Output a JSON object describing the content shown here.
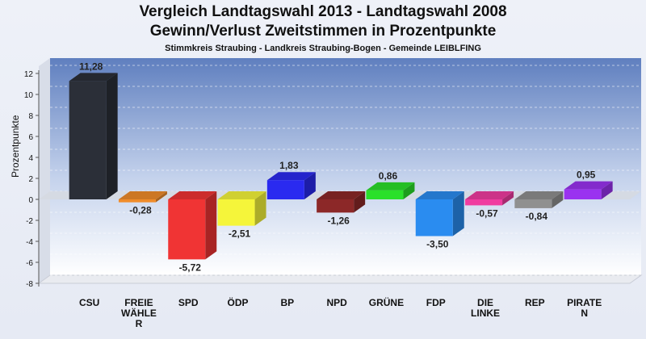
{
  "title": "Vergleich Landtagswahl 2013 - Landtagswahl 2008",
  "subtitle_line2": "Gewinn/Verlust Zweitstimmen in Prozentpunkte",
  "subtitle_line3": "Stimmkreis Straubing - Landkreis Straubing-Bogen - Gemeinde LEIBLFING",
  "chart_data": {
    "type": "bar",
    "title": "Vergleich Landtagswahl 2013 - Landtagswahl 2008",
    "ylabel": "Prozentpunkte",
    "xlabel": "",
    "ylim": [
      -8,
      12
    ],
    "yticks": [
      -8,
      -6,
      -4,
      -2,
      0,
      2,
      4,
      6,
      8,
      10,
      12
    ],
    "grid": false,
    "categories": [
      "CSU",
      "FREIE WÄHLER",
      "SPD",
      "ÖDP",
      "BP",
      "NPD",
      "GRÜNE",
      "FDP",
      "DIE LINKE",
      "REP",
      "PIRATEN"
    ],
    "category_lines": [
      [
        "CSU"
      ],
      [
        "FREIE",
        "WÄHLE",
        "R"
      ],
      [
        "SPD"
      ],
      [
        "ÖDP"
      ],
      [
        "BP"
      ],
      [
        "NPD"
      ],
      [
        "GRÜNE"
      ],
      [
        "FDP"
      ],
      [
        "DIE",
        "LINKE"
      ],
      [
        "REP"
      ],
      [
        "PIRATE",
        "N"
      ]
    ],
    "values": [
      11.28,
      -0.28,
      -5.72,
      -2.51,
      1.83,
      -1.26,
      0.86,
      -3.5,
      -0.57,
      -0.84,
      0.95
    ],
    "value_labels": [
      "11,28",
      "-0,28",
      "-5,72",
      "-2,51",
      "1,83",
      "-1,26",
      "0,86",
      "-3,50",
      "-0,57",
      "-0,84",
      "0,95"
    ],
    "colors": [
      "#2b2f38",
      "#f08c2a",
      "#f03434",
      "#f5f53a",
      "#2a2af0",
      "#8c2828",
      "#2ae02a",
      "#2a8cf0",
      "#f03ca0",
      "#909090",
      "#9a32f0"
    ]
  }
}
